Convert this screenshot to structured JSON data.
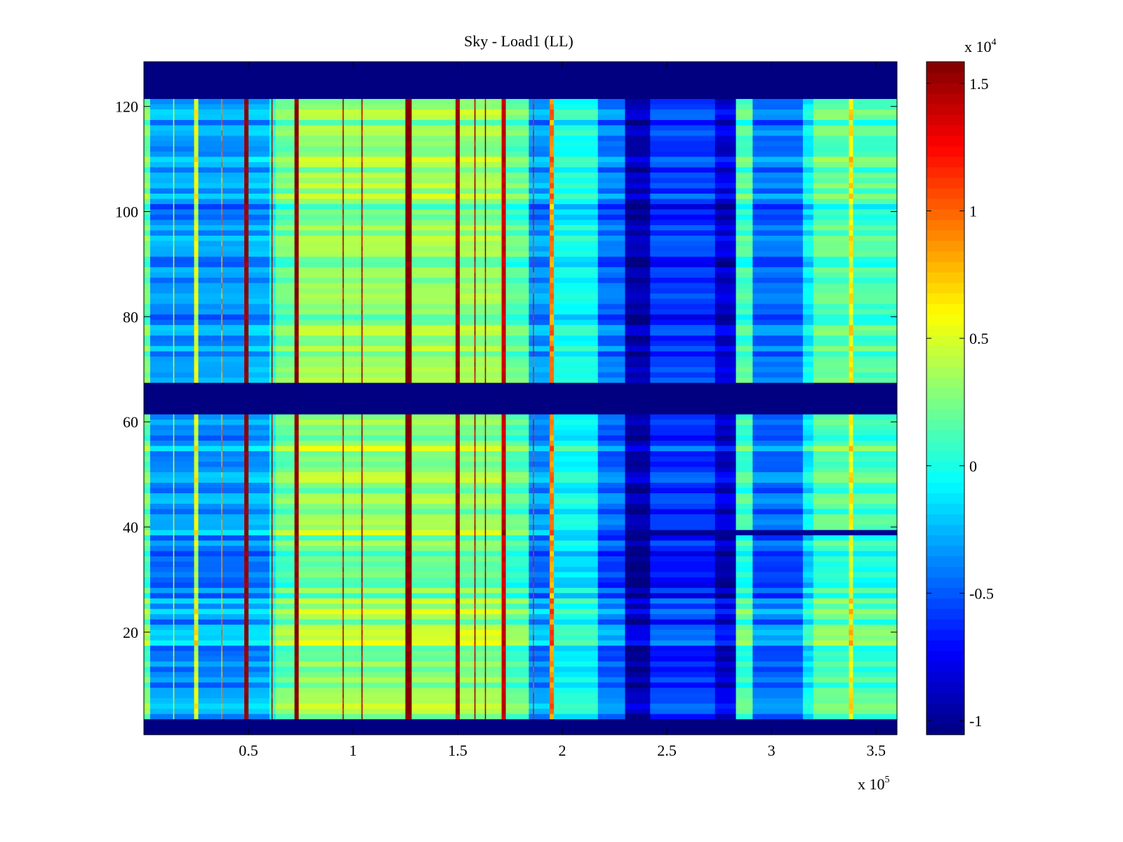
{
  "chart_data": {
    "type": "heatmap",
    "title": "Sky - Load1 (LL)",
    "xlabel": "",
    "ylabel": "",
    "x_multiplier_label": {
      "base": "x 10",
      "exp": "5"
    },
    "colorbar_multiplier_label": {
      "base": "x 10",
      "exp": "4"
    },
    "xlim": [
      0,
      3.6
    ],
    "ylim": [
      0.5,
      128.5
    ],
    "clim": [
      -1.055,
      1.585
    ],
    "colormap": "jet",
    "xticks": [
      0.5,
      1,
      1.5,
      2,
      2.5,
      3,
      3.5
    ],
    "xtick_labels": [
      "0.5",
      "1",
      "1.5",
      "2",
      "2.5",
      "3",
      "3.5"
    ],
    "yticks": [
      20,
      40,
      60,
      80,
      100,
      120
    ],
    "ytick_labels": [
      "20",
      "40",
      "60",
      "80",
      "100",
      "120"
    ],
    "cticks": [
      -1,
      -0.5,
      0,
      0.5,
      1,
      1.5
    ],
    "ctick_labels": [
      "-1",
      "-0.5",
      "0",
      "0.5",
      "1",
      "1.5"
    ],
    "rows": 128,
    "column_bands": [
      [
        0,
        0.03,
        0.2
      ],
      [
        0.03,
        0.24,
        -0.35
      ],
      [
        0.24,
        0.26,
        0.5
      ],
      [
        0.26,
        0.48,
        -0.35
      ],
      [
        0.48,
        0.5,
        1.55
      ],
      [
        0.5,
        0.6,
        -0.3
      ],
      [
        0.6,
        0.63,
        0.0
      ],
      [
        0.63,
        0.72,
        0.2
      ],
      [
        0.72,
        0.74,
        1.55
      ],
      [
        0.74,
        1.25,
        0.3
      ],
      [
        1.25,
        1.28,
        1.58
      ],
      [
        1.28,
        1.49,
        0.3
      ],
      [
        1.49,
        1.51,
        1.5
      ],
      [
        1.51,
        1.71,
        0.3
      ],
      [
        1.71,
        1.73,
        1.4
      ],
      [
        1.73,
        1.84,
        0.15
      ],
      [
        1.84,
        1.94,
        -0.35
      ],
      [
        1.94,
        1.96,
        0.9
      ],
      [
        1.96,
        2.17,
        -0.05
      ],
      [
        2.17,
        2.3,
        -0.45
      ],
      [
        2.3,
        2.42,
        -0.95
      ],
      [
        2.42,
        2.73,
        -0.6
      ],
      [
        2.73,
        2.83,
        -0.85
      ],
      [
        2.83,
        2.91,
        0.1
      ],
      [
        2.91,
        3.15,
        -0.45
      ],
      [
        3.15,
        3.2,
        -0.1
      ],
      [
        3.2,
        3.37,
        0.15
      ],
      [
        3.37,
        3.39,
        0.6
      ],
      [
        3.39,
        3.6,
        0.1
      ]
    ],
    "thin_lines": [
      [
        0.61,
        1.5
      ],
      [
        0.95,
        1.5
      ],
      [
        1.04,
        1.5
      ],
      [
        1.58,
        1.5
      ],
      [
        1.63,
        1.5
      ],
      [
        0.14,
        0.5
      ],
      [
        0.37,
        0.9
      ],
      [
        1.86,
        1.2
      ]
    ],
    "masked_rows": [
      [
        1,
        3
      ],
      [
        62,
        67
      ],
      [
        122,
        128
      ]
    ],
    "masked_value": -1.05,
    "special_row": {
      "row": 39,
      "left_until": 2.0,
      "left_offset": 0.35,
      "right_from": 2.18,
      "right_value": -1.0
    }
  }
}
